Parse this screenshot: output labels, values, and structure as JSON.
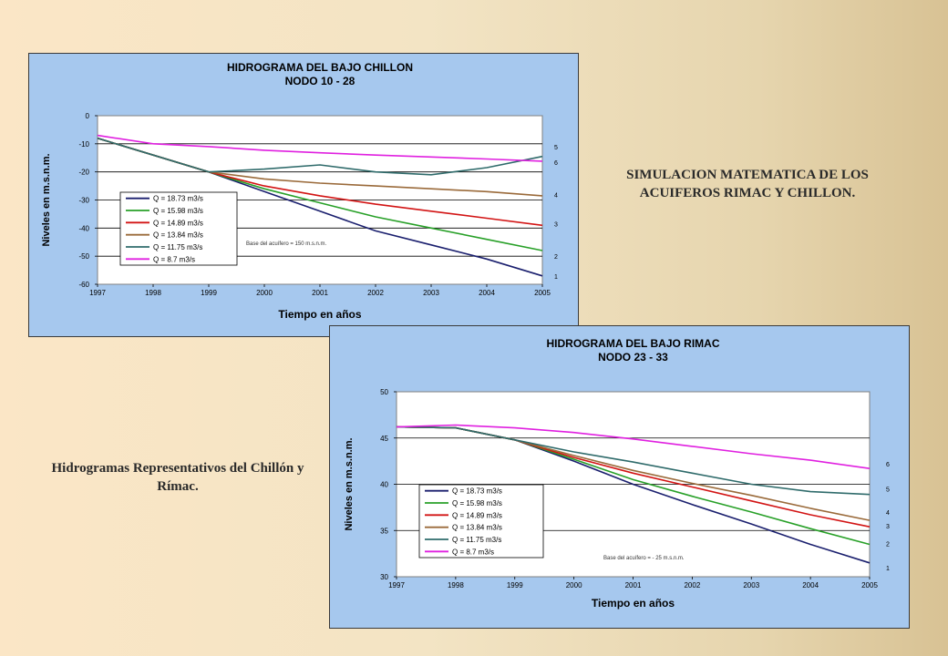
{
  "side_texts": {
    "simulation_title": "SIMULACION MATEMATICA DE LOS ACUIFEROS RIMAC Y CHILLON.",
    "caption": "Hidrogramas Representativos del Chillón y Rímac."
  },
  "chart_data": [
    {
      "type": "line",
      "title": "HIDROGRAMA DEL BAJO CHILLON",
      "subtitle": "NODO 10 - 28",
      "xlabel": "Tiempo en años",
      "ylabel": "Niveles en m.s.n.m.",
      "x_ticks": [
        "1997",
        "1998",
        "1999",
        "2000",
        "2001",
        "2002",
        "2003",
        "2004",
        "2005"
      ],
      "xlim": [
        1997,
        2005
      ],
      "ylim": [
        -60,
        0
      ],
      "y_ticks": [
        0,
        -10,
        -20,
        -30,
        -40,
        -50,
        -60
      ],
      "y_tick_labels": [
        "0",
        "-10",
        "-20",
        "-30",
        "-40",
        "-50",
        "-60"
      ],
      "hgrid": [
        -10,
        -20,
        -30,
        -40,
        -50
      ],
      "annotation": "Base del acuífero = 150 m.s.n.m.",
      "right_labels": [
        {
          "text": "5",
          "y": -11
        },
        {
          "text": "6",
          "y": -16.5
        },
        {
          "text": "4",
          "y": -28
        },
        {
          "text": "3",
          "y": -38.5
        },
        {
          "text": "2",
          "y": -50
        },
        {
          "text": "1",
          "y": -57
        }
      ],
      "legend": "left-middle",
      "series": [
        {
          "name": "Q = 18.73 m3/s",
          "color": "#1a1f6e",
          "x": [
            1997,
            1998,
            1999,
            2000,
            2001,
            2002,
            2003,
            2004,
            2005
          ],
          "y": [
            -8,
            -14,
            -20,
            -27,
            -34,
            -41,
            -46,
            -51,
            -57
          ]
        },
        {
          "name": "Q = 15.98 m3/s",
          "color": "#28a028",
          "x": [
            1997,
            1998,
            1999,
            2000,
            2001,
            2002,
            2003,
            2004,
            2005
          ],
          "y": [
            -8,
            -14,
            -20,
            -26,
            -31,
            -36,
            -40,
            -44,
            -48
          ]
        },
        {
          "name": "Q = 14.89 m3/s",
          "color": "#d21414",
          "x": [
            1997,
            1998,
            1999,
            2000,
            2001,
            2002,
            2003,
            2004,
            2005
          ],
          "y": [
            -8,
            -14,
            -20,
            -25,
            -28.5,
            -31.5,
            -34,
            -36.5,
            -39
          ]
        },
        {
          "name": "Q = 13.84 m3/s",
          "color": "#9a6a3a",
          "x": [
            1997,
            1998,
            1999,
            2000,
            2001,
            2002,
            2003,
            2004,
            2005
          ],
          "y": [
            -8,
            -14,
            -20,
            -22.5,
            -24,
            -25,
            -26,
            -27,
            -28.5
          ]
        },
        {
          "name": "Q = 11.75 m3/s",
          "color": "#2f6b6b",
          "x": [
            1997,
            1998,
            1999,
            2000,
            2001,
            2002,
            2003,
            2004,
            2005
          ],
          "y": [
            -8,
            -14,
            -20,
            -19,
            -17.5,
            -20,
            -21,
            -18.5,
            -14.5
          ]
        },
        {
          "name": "Q = 8.7 m3/s",
          "color": "#e020e0",
          "x": [
            1997,
            1998,
            1999,
            2000,
            2001,
            2002,
            2003,
            2004,
            2005
          ],
          "y": [
            -7,
            -10,
            -11,
            -12.3,
            -13.2,
            -14,
            -14.7,
            -15.4,
            -16.2
          ]
        }
      ]
    },
    {
      "type": "line",
      "title": "HIDROGRAMA DEL BAJO RIMAC",
      "subtitle": "NODO 23 - 33",
      "xlabel": "Tiempo en años",
      "ylabel": "Niveles en m.s.n.m.",
      "x_ticks": [
        "1997",
        "1998",
        "1999",
        "2000",
        "2001",
        "2002",
        "2003",
        "2004",
        "2005"
      ],
      "xlim": [
        1997,
        2005
      ],
      "ylim": [
        30,
        50
      ],
      "y_ticks": [
        50,
        45,
        40,
        35,
        30
      ],
      "y_tick_labels": [
        "50",
        "45",
        "40",
        "35",
        "30"
      ],
      "hgrid": [
        45,
        40,
        35
      ],
      "annotation": "Base del acuífero = - 25 m.s.n.m.",
      "right_labels": [
        {
          "text": "6",
          "y": 42.2
        },
        {
          "text": "5",
          "y": 39.5
        },
        {
          "text": "4",
          "y": 37
        },
        {
          "text": "3",
          "y": 35.5
        },
        {
          "text": "2",
          "y": 33.6
        },
        {
          "text": "1",
          "y": 31
        }
      ],
      "legend": "left-bottom",
      "series": [
        {
          "name": "Q = 18.73 m3/s",
          "color": "#1a1f6e",
          "x": [
            1997,
            1998,
            1999,
            2000,
            2001,
            2002,
            2003,
            2004,
            2005
          ],
          "y": [
            46.2,
            46.1,
            44.8,
            42.5,
            40,
            37.8,
            35.7,
            33.5,
            31.5
          ]
        },
        {
          "name": "Q = 15.98 m3/s",
          "color": "#28a028",
          "x": [
            1997,
            1998,
            1999,
            2000,
            2001,
            2002,
            2003,
            2004,
            2005
          ],
          "y": [
            46.2,
            46.1,
            44.8,
            42.7,
            40.5,
            38.7,
            37,
            35.2,
            33.5
          ]
        },
        {
          "name": "Q = 14.89 m3/s",
          "color": "#d21414",
          "x": [
            1997,
            1998,
            1999,
            2000,
            2001,
            2002,
            2003,
            2004,
            2005
          ],
          "y": [
            46.2,
            46.1,
            44.8,
            42.9,
            41.2,
            39.7,
            38.2,
            36.7,
            35.4
          ]
        },
        {
          "name": "Q = 13.84 m3/s",
          "color": "#9a6a3a",
          "x": [
            1997,
            1998,
            1999,
            2000,
            2001,
            2002,
            2003,
            2004,
            2005
          ],
          "y": [
            46.2,
            46.1,
            44.8,
            43.1,
            41.5,
            40.1,
            38.8,
            37.4,
            36.1
          ]
        },
        {
          "name": "Q = 11.75 m3/s",
          "color": "#2f6b6b",
          "x": [
            1997,
            1998,
            1999,
            2000,
            2001,
            2002,
            2003,
            2004,
            2005
          ],
          "y": [
            46.2,
            46.1,
            44.8,
            43.5,
            42.4,
            41.2,
            40,
            39.2,
            38.9
          ]
        },
        {
          "name": "Q = 8.7 m3/s",
          "color": "#e020e0",
          "x": [
            1997,
            1998,
            1999,
            2000,
            2001,
            2002,
            2003,
            2004,
            2005
          ],
          "y": [
            46.2,
            46.4,
            46.1,
            45.6,
            44.9,
            44.1,
            43.3,
            42.6,
            41.7
          ]
        }
      ]
    }
  ]
}
